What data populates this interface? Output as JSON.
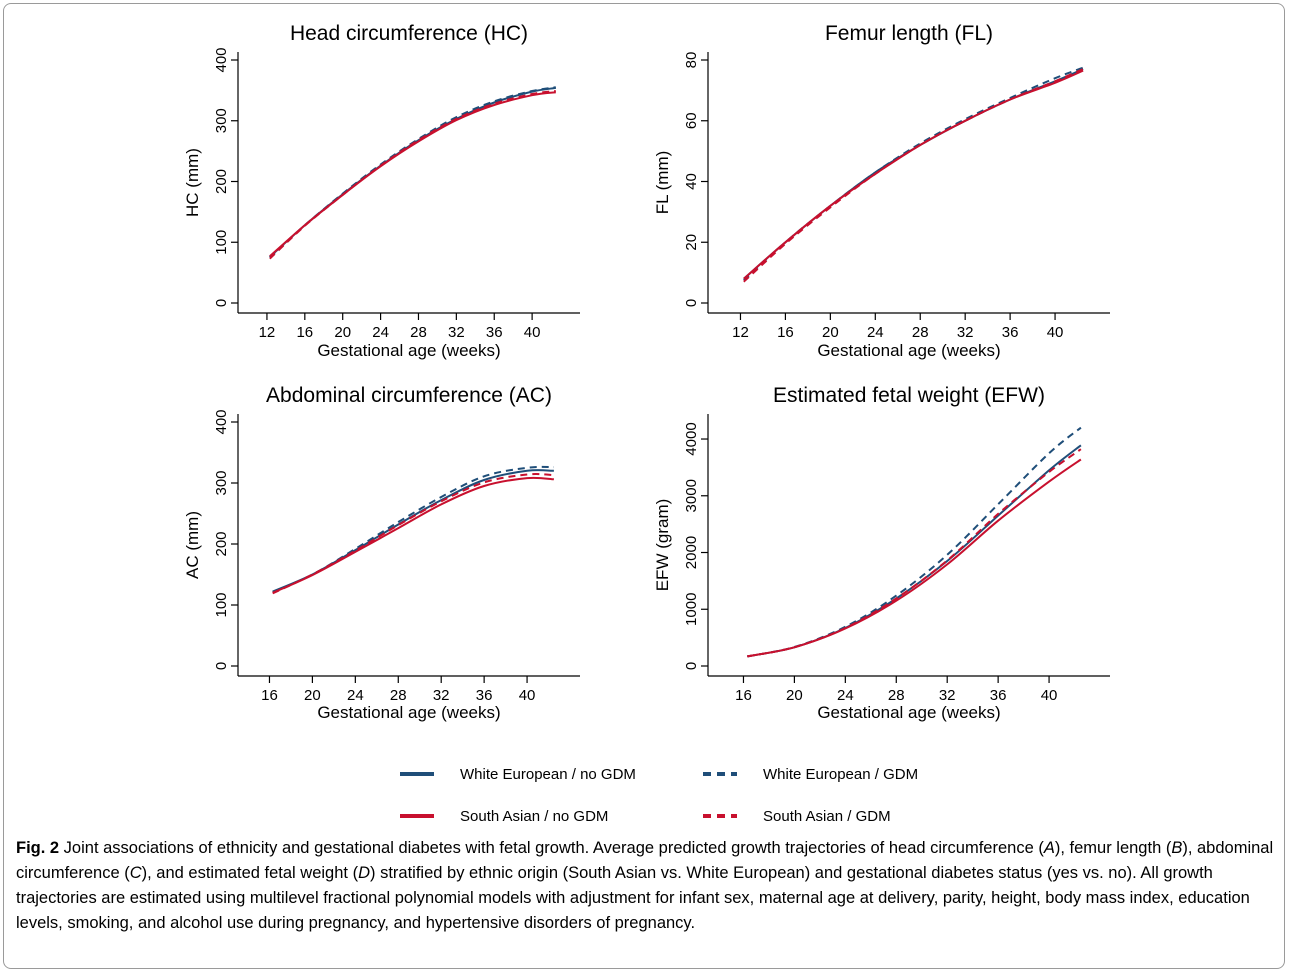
{
  "colors": {
    "white_european": "#1f4e79",
    "south_asian": "#c8102e",
    "axis": "#000000"
  },
  "chart_data": [
    {
      "type": "line",
      "title": "Head circumference (HC)",
      "xlabel": "Gestational age (weeks)",
      "ylabel": "HC (mm)",
      "xticks": [
        "12",
        "16",
        "20",
        "24",
        "28",
        "32",
        "36",
        "40"
      ],
      "yticks": [
        "0",
        "100",
        "200",
        "300",
        "400"
      ],
      "xlim": [
        10,
        44
      ],
      "ylim": [
        0,
        400
      ],
      "x": [
        12.3,
        16,
        20,
        24,
        28,
        32,
        36,
        40,
        42.5
      ],
      "series": [
        {
          "name": "White European / no GDM",
          "values": [
            76,
            128,
            179,
            226,
            268,
            303,
            330,
            348,
            354
          ]
        },
        {
          "name": "White European / GDM",
          "values": [
            75,
            128,
            180,
            228,
            270,
            306,
            332,
            349,
            355
          ]
        },
        {
          "name": "South Asian / no GDM",
          "values": [
            77,
            128,
            178,
            225,
            266,
            301,
            326,
            342,
            347
          ]
        },
        {
          "name": "South Asian / GDM",
          "values": [
            73,
            127,
            178,
            226,
            268,
            303,
            328,
            344,
            349
          ]
        }
      ]
    },
    {
      "type": "line",
      "title": "Femur length (FL)",
      "xlabel": "Gestational age (weeks)",
      "ylabel": "FL (mm)",
      "xticks": [
        "12",
        "16",
        "20",
        "24",
        "28",
        "32",
        "36",
        "40"
      ],
      "yticks": [
        "0",
        "20",
        "40",
        "60",
        "80"
      ],
      "xlim": [
        10,
        44
      ],
      "ylim": [
        0,
        80
      ],
      "x": [
        12.3,
        16,
        20,
        24,
        28,
        32,
        36,
        40,
        42.5
      ],
      "series": [
        {
          "name": "White European / no GDM",
          "values": [
            8,
            20,
            32,
            43,
            52,
            60,
            67,
            73,
            77
          ]
        },
        {
          "name": "White European / GDM",
          "values": [
            7.5,
            20,
            32,
            43,
            52.5,
            60.5,
            67.5,
            74,
            77.5
          ]
        },
        {
          "name": "South Asian / no GDM",
          "values": [
            8,
            20,
            32,
            42.5,
            52,
            60,
            67,
            72.5,
            76.5
          ]
        },
        {
          "name": "South Asian / GDM",
          "values": [
            7,
            19.5,
            31.5,
            42.5,
            52,
            60,
            67,
            73,
            77
          ]
        }
      ]
    },
    {
      "type": "line",
      "title": "Abdominal circumference (AC)",
      "xlabel": "Gestational age (weeks)",
      "ylabel": "AC (mm)",
      "xticks": [
        "16",
        "20",
        "24",
        "28",
        "32",
        "36",
        "40"
      ],
      "yticks": [
        "0",
        "100",
        "200",
        "300",
        "400"
      ],
      "xlim": [
        14,
        44
      ],
      "ylim": [
        0,
        400
      ],
      "x": [
        16.3,
        20,
        24,
        28,
        32,
        36,
        40,
        42.5
      ],
      "series": [
        {
          "name": "White European / no GDM",
          "values": [
            122,
            150,
            190,
            232,
            272,
            305,
            320,
            320
          ]
        },
        {
          "name": "White European / GDM",
          "values": [
            121,
            150,
            192,
            236,
            277,
            311,
            325,
            326
          ]
        },
        {
          "name": "South Asian / no GDM",
          "values": [
            120,
            149,
            187,
            226,
            265,
            295,
            308,
            306
          ]
        },
        {
          "name": "South Asian / GDM",
          "values": [
            119,
            150,
            189,
            231,
            270,
            301,
            314,
            313
          ]
        }
      ]
    },
    {
      "type": "line",
      "title": "Estimated fetal weight (EFW)",
      "xlabel": "Gestational age (weeks)",
      "ylabel": "EFW (gram)",
      "xticks": [
        "16",
        "20",
        "24",
        "28",
        "32",
        "36",
        "40"
      ],
      "yticks": [
        "0",
        "1000",
        "2000",
        "3000",
        "4000"
      ],
      "xlim": [
        14,
        44
      ],
      "ylim": [
        0,
        4300
      ],
      "x": [
        16.3,
        20,
        24,
        28,
        32,
        36,
        40,
        42.5
      ],
      "series": [
        {
          "name": "White European / no GDM",
          "values": [
            170,
            330,
            670,
            1190,
            1850,
            2650,
            3450,
            3890
          ]
        },
        {
          "name": "White European / GDM",
          "values": [
            170,
            335,
            690,
            1240,
            1960,
            2850,
            3750,
            4200
          ]
        },
        {
          "name": "South Asian / no GDM",
          "values": [
            170,
            330,
            660,
            1150,
            1790,
            2560,
            3250,
            3640
          ]
        },
        {
          "name": "South Asian / GDM",
          "values": [
            170,
            330,
            670,
            1190,
            1860,
            2680,
            3420,
            3820
          ]
        }
      ]
    }
  ],
  "legend": [
    {
      "label": "White European / no GDM",
      "color": "#1f4e79",
      "dashed": false
    },
    {
      "label": "White European / GDM",
      "color": "#1f4e79",
      "dashed": true
    },
    {
      "label": "South Asian / no GDM",
      "color": "#c8102e",
      "dashed": false
    },
    {
      "label": "South Asian / GDM",
      "color": "#c8102e",
      "dashed": true
    }
  ],
  "caption": {
    "fig_label": "Fig. 2",
    "part1": " Joint associations of ethnicity and gestational diabetes with fetal growth. Average predicted growth trajectories of head circumference (",
    "A": "A",
    "part2": "), femur length (",
    "B": "B",
    "part3": "), abdominal circumference (",
    "C": "C",
    "part4": "), and estimated fetal weight (",
    "D": "D",
    "part5": ") stratified by ethnic origin (South Asian vs. White European) and gestational diabetes status (yes vs. no). All growth trajectories are estimated using multilevel fractional polynomial models with adjustment for infant sex, maternal age at delivery, parity, height, body mass index, education levels, smoking, and alcohol use during pregnancy, and hypertensive disorders of pregnancy."
  }
}
